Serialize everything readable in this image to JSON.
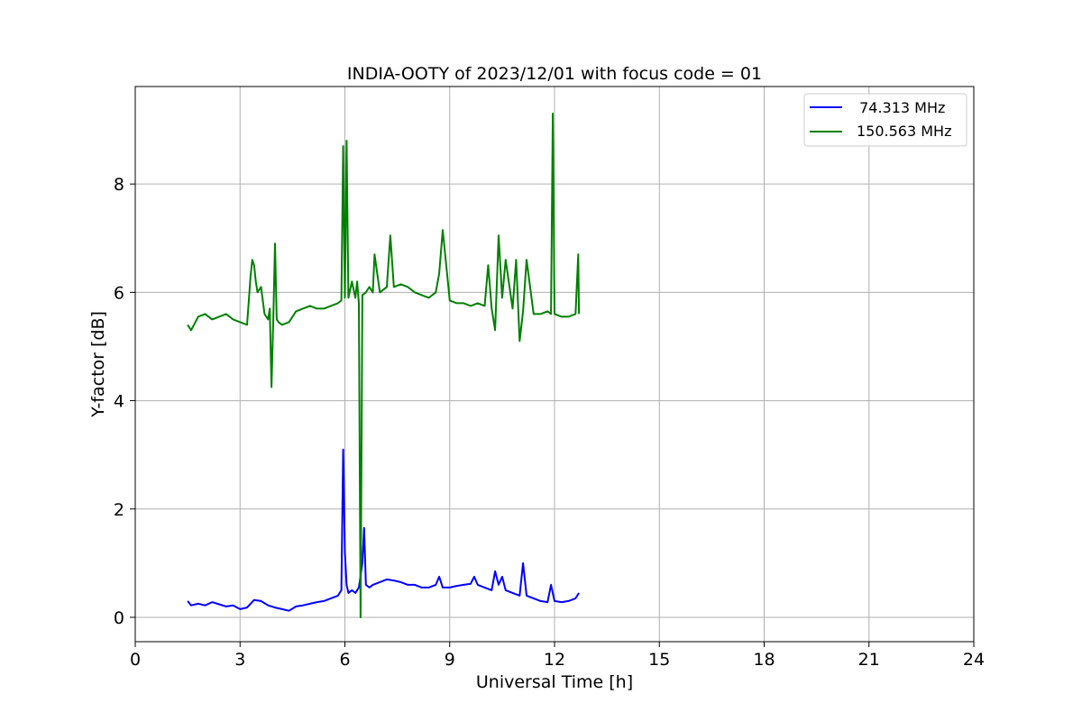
{
  "chart_data": {
    "type": "line",
    "title": "INDIA-OOTY of 2023/12/01 with focus code = 01",
    "xlabel": "Universal Time [h]",
    "ylabel": "Y-factor [dB]",
    "xlim": [
      0,
      24
    ],
    "ylim": [
      -0.45,
      9.8
    ],
    "xticks": [
      0,
      3,
      6,
      9,
      12,
      15,
      18,
      21,
      24
    ],
    "yticks": [
      0,
      2,
      4,
      6,
      8
    ],
    "grid": true,
    "legend_position": "top-right",
    "series": [
      {
        "name": " 74.313 MHz",
        "color": "#0000ff",
        "x": [
          1.5,
          1.6,
          1.8,
          2.0,
          2.2,
          2.4,
          2.6,
          2.8,
          3.0,
          3.2,
          3.4,
          3.6,
          3.8,
          4.0,
          4.2,
          4.4,
          4.6,
          4.8,
          5.0,
          5.2,
          5.4,
          5.6,
          5.8,
          5.9,
          5.95,
          6.0,
          6.05,
          6.1,
          6.2,
          6.3,
          6.4,
          6.5,
          6.55,
          6.6,
          6.7,
          6.8,
          7.0,
          7.2,
          7.4,
          7.6,
          7.8,
          8.0,
          8.2,
          8.4,
          8.6,
          8.7,
          8.8,
          9.0,
          9.2,
          9.4,
          9.6,
          9.7,
          9.8,
          10.0,
          10.2,
          10.3,
          10.4,
          10.5,
          10.6,
          10.8,
          11.0,
          11.1,
          11.2,
          11.4,
          11.6,
          11.8,
          11.9,
          12.0,
          12.2,
          12.4,
          12.6,
          12.7
        ],
        "y": [
          0.3,
          0.22,
          0.25,
          0.22,
          0.28,
          0.24,
          0.2,
          0.22,
          0.15,
          0.18,
          0.32,
          0.3,
          0.22,
          0.18,
          0.15,
          0.12,
          0.2,
          0.22,
          0.25,
          0.28,
          0.3,
          0.35,
          0.4,
          0.5,
          3.1,
          1.2,
          0.6,
          0.45,
          0.5,
          0.45,
          0.55,
          1.0,
          1.65,
          0.6,
          0.55,
          0.6,
          0.65,
          0.7,
          0.68,
          0.65,
          0.6,
          0.6,
          0.55,
          0.55,
          0.6,
          0.75,
          0.55,
          0.55,
          0.58,
          0.6,
          0.62,
          0.75,
          0.6,
          0.55,
          0.5,
          0.85,
          0.6,
          0.75,
          0.5,
          0.45,
          0.4,
          1.0,
          0.4,
          0.35,
          0.3,
          0.28,
          0.6,
          0.3,
          0.28,
          0.3,
          0.35,
          0.45
        ]
      },
      {
        "name": "150.563 MHz",
        "color": "#008000",
        "x": [
          1.5,
          1.6,
          1.8,
          2.0,
          2.2,
          2.4,
          2.6,
          2.8,
          3.0,
          3.2,
          3.3,
          3.35,
          3.4,
          3.45,
          3.5,
          3.6,
          3.7,
          3.8,
          3.85,
          3.9,
          3.95,
          4.0,
          4.05,
          4.1,
          4.2,
          4.4,
          4.6,
          4.8,
          5.0,
          5.2,
          5.4,
          5.6,
          5.8,
          5.9,
          5.95,
          6.0,
          6.05,
          6.1,
          6.2,
          6.3,
          6.35,
          6.4,
          6.45,
          6.5,
          6.6,
          6.7,
          6.8,
          6.85,
          7.0,
          7.2,
          7.3,
          7.4,
          7.6,
          7.8,
          8.0,
          8.2,
          8.4,
          8.6,
          8.7,
          8.8,
          9.0,
          9.2,
          9.4,
          9.6,
          9.8,
          10.0,
          10.1,
          10.2,
          10.3,
          10.4,
          10.5,
          10.6,
          10.8,
          10.9,
          11.0,
          11.1,
          11.2,
          11.4,
          11.6,
          11.8,
          11.9,
          11.95,
          12.0,
          12.2,
          12.4,
          12.6,
          12.68,
          12.7
        ],
        "y": [
          5.4,
          5.3,
          5.55,
          5.6,
          5.5,
          5.55,
          5.6,
          5.5,
          5.45,
          5.4,
          6.3,
          6.6,
          6.5,
          6.2,
          6.0,
          6.1,
          5.6,
          5.5,
          5.7,
          4.25,
          5.5,
          6.9,
          5.5,
          5.45,
          5.4,
          5.45,
          5.65,
          5.7,
          5.75,
          5.7,
          5.7,
          5.75,
          5.8,
          5.85,
          8.7,
          5.9,
          8.8,
          5.9,
          6.2,
          5.9,
          6.2,
          5.8,
          0.0,
          5.95,
          6.0,
          6.1,
          6.0,
          6.7,
          6.0,
          6.1,
          7.05,
          6.1,
          6.15,
          6.1,
          6.0,
          5.95,
          5.9,
          6.0,
          6.35,
          7.15,
          5.85,
          5.8,
          5.8,
          5.75,
          5.8,
          5.75,
          6.5,
          5.7,
          5.3,
          7.05,
          5.9,
          6.6,
          5.7,
          6.6,
          5.1,
          5.65,
          6.6,
          5.6,
          5.6,
          5.65,
          5.6,
          9.3,
          5.6,
          5.55,
          5.55,
          5.6,
          6.7,
          5.6
        ]
      }
    ]
  }
}
